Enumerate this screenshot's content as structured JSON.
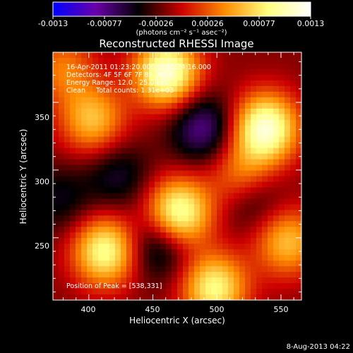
{
  "chart_data": {
    "type": "heatmap",
    "title": "Reconstructed RHESSI Image",
    "xlabel": "Heliocentric X (arcsec)",
    "ylabel": "Heliocentric Y (arcsec)",
    "xlim": [
      372,
      566
    ],
    "ylim": [
      204,
      387
    ],
    "x_ticks": [
      400,
      450,
      500,
      550
    ],
    "y_ticks": [
      250,
      300,
      350
    ],
    "colorbar": {
      "label": "(photons cm⁻² s⁻¹ asec⁻²)",
      "range": [
        -0.0013,
        0.0013
      ],
      "ticks": [
        "-0.0013",
        "-0.00077",
        "-0.00026",
        "0.00026",
        "0.00077",
        "0.0013"
      ],
      "colormap": [
        "#0000ff",
        "#6a00a8",
        "#000000",
        "#cc0000",
        "#ff8c00",
        "#ffff80",
        "#ffffff"
      ]
    },
    "annotations": [
      "16-Apr-2011 01:23:20.000 to 01:24:16.000",
      "Detectors: 4F 5F 6F 7F 8F, Att 0",
      "Energy Range: 12.0 - 25.0 keV",
      "Clean     Total counts: 1.31e+03"
    ],
    "peak_label": "Position of Peak = [538,331]",
    "peaks": [
      {
        "x": 461,
        "y": 372,
        "value": 1.0
      },
      {
        "x": 538,
        "y": 331,
        "value": 1.0
      },
      {
        "x": 470,
        "y": 268,
        "value": 0.95
      },
      {
        "x": 413,
        "y": 240,
        "value": 0.85
      },
      {
        "x": 498,
        "y": 213,
        "value": 0.8
      },
      {
        "x": 403,
        "y": 337,
        "value": 0.6
      },
      {
        "x": 555,
        "y": 247,
        "value": 0.6
      },
      {
        "x": 380,
        "y": 375,
        "value": 0.4
      },
      {
        "x": 520,
        "y": 295,
        "value": 0.5
      }
    ],
    "troughs": [
      {
        "x": 489,
        "y": 331,
        "value": -0.5
      },
      {
        "x": 455,
        "y": 245,
        "value": -0.45
      },
      {
        "x": 528,
        "y": 280,
        "value": -0.35
      },
      {
        "x": 423,
        "y": 296,
        "value": -0.3
      },
      {
        "x": 378,
        "y": 278,
        "value": -0.25
      }
    ]
  },
  "footer": {
    "date": "8-Aug-2013 04:22"
  }
}
